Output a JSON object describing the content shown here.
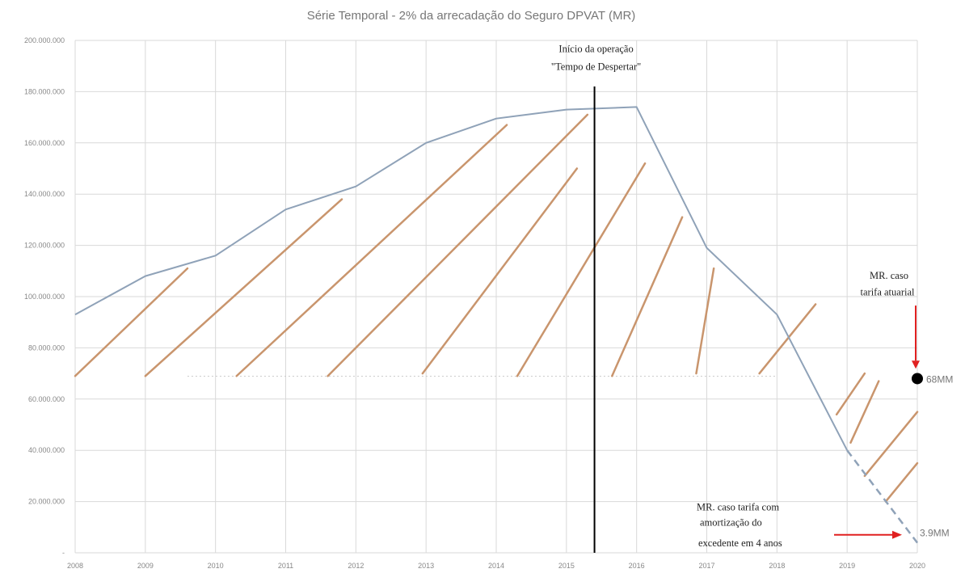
{
  "chart_data": {
    "type": "line",
    "title": "Série Temporal - 2% da arrecadação do Seguro DPVAT (MR)",
    "xlabel": "",
    "ylabel": "",
    "x": [
      2008,
      2009,
      2010,
      2011,
      2012,
      2013,
      2014,
      2015,
      2016,
      2017,
      2018,
      2019,
      2020
    ],
    "xlim": [
      2008,
      2020
    ],
    "ylim": [
      0,
      200000000
    ],
    "y_ticks": [
      {
        "value": 0,
        "label": "-"
      },
      {
        "value": 20000000,
        "label": "20.000.000"
      },
      {
        "value": 40000000,
        "label": "40.000.000"
      },
      {
        "value": 60000000,
        "label": "60.000.000"
      },
      {
        "value": 80000000,
        "label": "80.000.000"
      },
      {
        "value": 100000000,
        "label": "100.000.000"
      },
      {
        "value": 120000000,
        "label": "120.000.000"
      },
      {
        "value": 140000000,
        "label": "140.000.000"
      },
      {
        "value": 160000000,
        "label": "160.000.000"
      },
      {
        "value": 180000000,
        "label": "180.000.000"
      },
      {
        "value": 200000000,
        "label": "200.000.000"
      }
    ],
    "x_ticks": [
      {
        "value": 2008,
        "label": "2008"
      },
      {
        "value": 2009,
        "label": "2009"
      },
      {
        "value": 2010,
        "label": "2010"
      },
      {
        "value": 2011,
        "label": "2011"
      },
      {
        "value": 2012,
        "label": "2012"
      },
      {
        "value": 2013,
        "label": "2013"
      },
      {
        "value": 2014,
        "label": "2014"
      },
      {
        "value": 2015,
        "label": "2015"
      },
      {
        "value": 2016,
        "label": "2016"
      },
      {
        "value": 2017,
        "label": "2017"
      },
      {
        "value": 2018,
        "label": "2018"
      },
      {
        "value": 2019,
        "label": "2019"
      },
      {
        "value": 2020,
        "label": "2020"
      }
    ],
    "grid": true,
    "colors": {
      "series": "#8fa2b8",
      "hatch": "#c9956d",
      "vline": "#000000",
      "arrow": "#e02020",
      "grid": "#d9d9d9",
      "dotted": "#cccccc"
    },
    "series": [
      {
        "values": [
          {
            "x": 2008,
            "y": 93000000
          },
          {
            "x": 2009,
            "y": 108000000
          },
          {
            "x": 2010,
            "y": 116000000
          },
          {
            "x": 2011,
            "y": 134000000
          },
          {
            "x": 2012,
            "y": 143000000
          },
          {
            "x": 2013,
            "y": 160000000
          },
          {
            "x": 2014,
            "y": 169500000
          },
          {
            "x": 2015,
            "y": 173000000
          },
          {
            "x": 2016,
            "y": 174000000
          },
          {
            "x": 2017,
            "y": 119000000
          },
          {
            "x": 2018,
            "y": 93000000
          },
          {
            "x": 2019,
            "y": 40000000
          }
        ],
        "projection": [
          {
            "x": 2019,
            "y": 40000000
          },
          {
            "x": 2020,
            "y": 3900000
          }
        ]
      }
    ],
    "reference_level": 68000000,
    "hatch_lines": [
      {
        "x1": 2008.0,
        "y1": 69000000,
        "x2": 2009.6,
        "y2": 111000000
      },
      {
        "x1": 2009.0,
        "y1": 69000000,
        "x2": 2011.8,
        "y2": 138000000
      },
      {
        "x1": 2010.3,
        "y1": 69000000,
        "x2": 2014.15,
        "y2": 167000000
      },
      {
        "x1": 2011.6,
        "y1": 69000000,
        "x2": 2015.3,
        "y2": 171000000
      },
      {
        "x1": 2012.95,
        "y1": 70000000,
        "x2": 2015.15,
        "y2": 150000000
      },
      {
        "x1": 2014.3,
        "y1": 69000000,
        "x2": 2016.12,
        "y2": 152000000
      },
      {
        "x1": 2015.65,
        "y1": 69000000,
        "x2": 2016.65,
        "y2": 131000000
      },
      {
        "x1": 2016.85,
        "y1": 70000000,
        "x2": 2017.1,
        "y2": 111000000
      },
      {
        "x1": 2017.75,
        "y1": 70000000,
        "x2": 2018.55,
        "y2": 97000000
      },
      {
        "x1": 2019.25,
        "y1": 70000000,
        "x2": 2018.85,
        "y2": 54000000
      },
      {
        "x1": 2019.45,
        "y1": 67000000,
        "x2": 2019.05,
        "y2": 43000000
      },
      {
        "x1": 2020.0,
        "y1": 55000000,
        "x2": 2019.25,
        "y2": 30000000
      },
      {
        "x1": 2020.0,
        "y1": 35000000,
        "x2": 2019.55,
        "y2": 20000000
      }
    ],
    "annotations": {
      "vline_x": 2015.4,
      "vline_label_line1": "Início da operação",
      "vline_label_line2": "\"Tempo de Despertar\"",
      "actuarial_line1": "MR. caso",
      "actuarial_line2": "tarifa atuarial",
      "actuarial_point": {
        "x": 2020,
        "y": 68000000
      },
      "actuarial_value": "68MM",
      "amort_line1": "MR. caso tarifa com",
      "amort_line2": "amortização do",
      "amort_line3": "excedente em 4 anos",
      "amort_value": "3.9MM"
    }
  }
}
